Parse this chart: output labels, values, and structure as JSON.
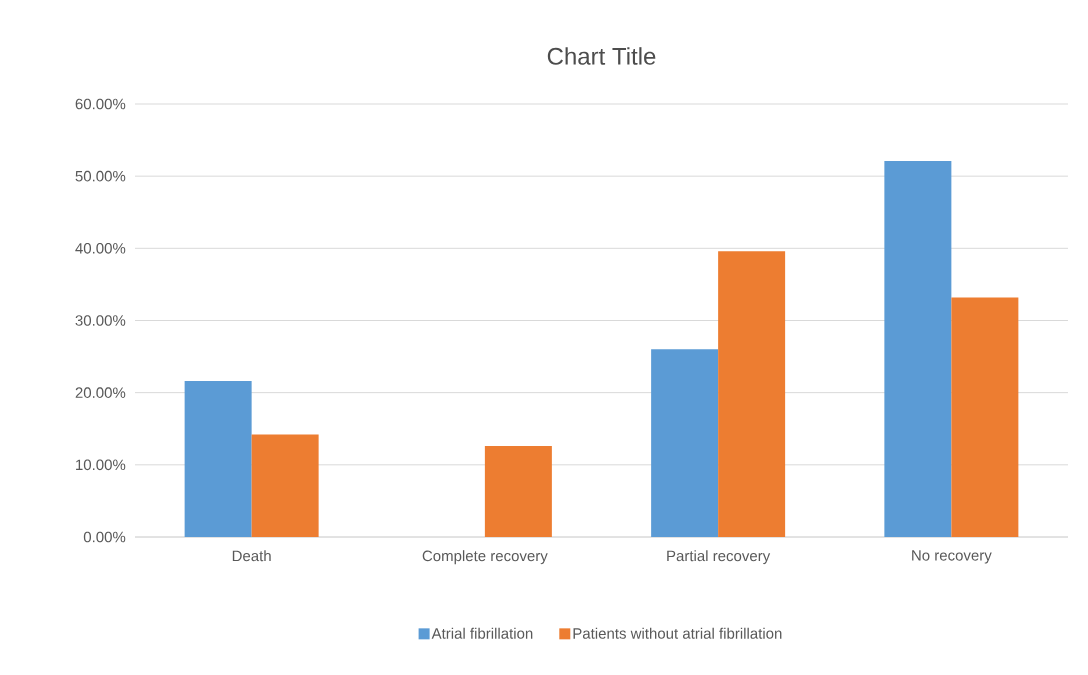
{
  "chart_data": {
    "type": "bar",
    "title": "Chart Title",
    "categories": [
      "Death",
      "Complete recovery",
      "Partial recovery",
      "No recovery"
    ],
    "series": [
      {
        "name": "Atrial fibrillation",
        "color": "#5b9bd5",
        "values": [
          21.6,
          0,
          26.0,
          52.1
        ]
      },
      {
        "name": "Patients without atrial fibrillation",
        "color": "#ed7d31",
        "values": [
          14.2,
          12.6,
          39.6,
          33.2
        ]
      }
    ],
    "ylim": [
      0,
      60
    ],
    "yticks": [
      {
        "value": 0,
        "label": "0.00%"
      },
      {
        "value": 10,
        "label": "10.00%"
      },
      {
        "value": 20,
        "label": "20.00%"
      },
      {
        "value": 30,
        "label": "30.00%"
      },
      {
        "value": 40,
        "label": "40.00%"
      },
      {
        "value": 50,
        "label": "50.00%"
      },
      {
        "value": 60,
        "label": "60.00%"
      }
    ],
    "grid": "y",
    "legend": "bottom"
  }
}
